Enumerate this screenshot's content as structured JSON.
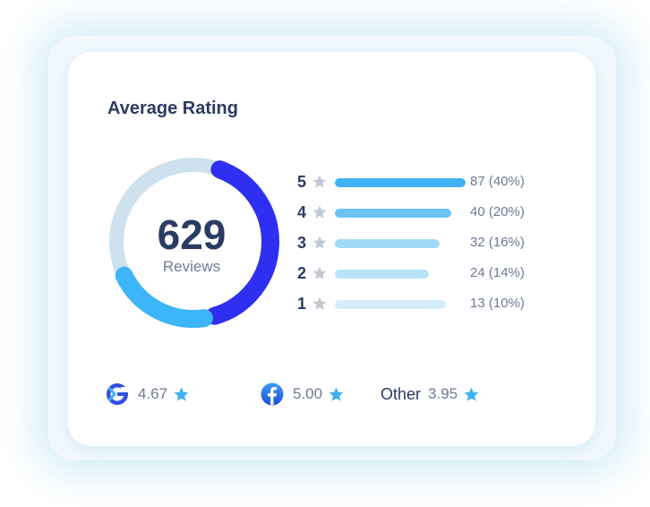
{
  "card": {
    "title": "Average Rating",
    "total_reviews": "629",
    "total_caption": "Reviews"
  },
  "distribution": [
    {
      "stars": "5",
      "count_label": "87 (40%)",
      "fill": 1.0,
      "color": "#3fb1f5"
    },
    {
      "stars": "4",
      "count_label": "40 (20%)",
      "fill": 0.89,
      "color": "#6cc4f4"
    },
    {
      "stars": "3",
      "count_label": "32 (16%)",
      "fill": 0.8,
      "color": "#9fd9f6"
    },
    {
      "stars": "2",
      "count_label": "24 (14%)",
      "fill": 0.72,
      "color": "#b8e3f8"
    },
    {
      "stars": "1",
      "count_label": "13 (10%)",
      "fill": 0.85,
      "color": "#d6eefb"
    }
  ],
  "donut": {
    "segments": [
      {
        "color": "#2f2ff2",
        "fraction": 0.4
      },
      {
        "color": "#3db5f8",
        "fraction": 0.2
      }
    ],
    "track_color": "#cee1ee"
  },
  "sources": [
    {
      "icon": "google-icon",
      "name": "",
      "rating": "4.67"
    },
    {
      "icon": "facebook-icon",
      "name": "",
      "rating": "5.00"
    },
    {
      "icon": "",
      "name": "Other",
      "rating": "3.95"
    }
  ],
  "colors": {
    "text_dark": "#2b3b63",
    "text_muted": "#6f7a96",
    "star_gray": "#c3c8d3",
    "star_blue": "#3fb1f5"
  }
}
